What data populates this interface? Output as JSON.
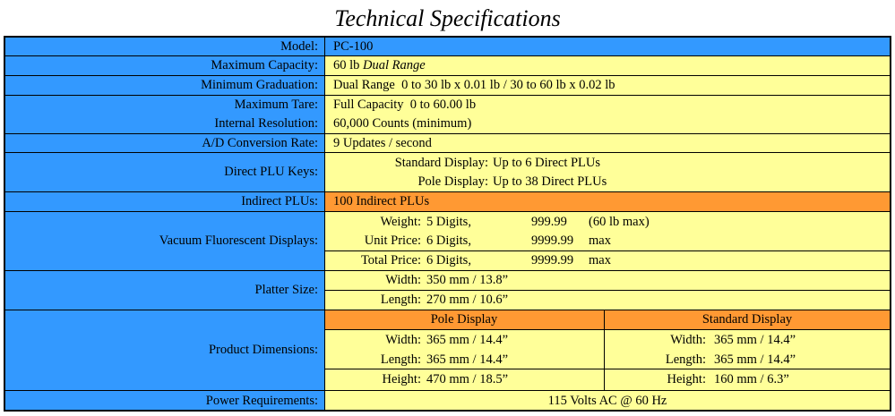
{
  "title": "Technical Specifications",
  "specs": {
    "model": {
      "label": "Model:",
      "value": "PC-100"
    },
    "capacity": {
      "label": "Maximum Capacity:",
      "value": "60 lb",
      "note": "Dual Range"
    },
    "graduation": {
      "label": "Minimum Graduation:",
      "value": "Dual Range  0 to 30 lb x 0.01 lb / 30 to 60 lb x 0.02 lb"
    },
    "tare": {
      "label": "Maximum Tare:",
      "value": "Full Capacity  0 to 60.00 lb"
    },
    "resolution": {
      "label": "Internal Resolution:",
      "value": "60,000 Counts (minimum)"
    },
    "ad_rate": {
      "label": "A/D Conversion Rate:",
      "value": "9 Updates / second"
    },
    "plu_keys": {
      "label": "Direct PLU Keys:",
      "lines": [
        {
          "label": "Standard Display:",
          "value": "Up to 6 Direct PLUs"
        },
        {
          "label": "Pole Display:",
          "value": "Up to 38 Direct PLUs"
        }
      ]
    },
    "indirect_plus": {
      "label": "Indirect PLUs:",
      "value": "100 Indirect PLUs"
    },
    "vfd": {
      "label": "Vacuum Fluorescent Displays:",
      "lines": [
        {
          "label": "Weight:",
          "digits": "5 Digits,",
          "value": "999.99",
          "unit": "(60 lb max)"
        },
        {
          "label": "Unit Price:",
          "digits": "6 Digits,",
          "value": "9999.99",
          "unit": "max"
        },
        {
          "label": "Total Price:",
          "digits": "6 Digits,",
          "value": "9999.99",
          "unit": "max"
        }
      ]
    },
    "platter": {
      "label": "Platter Size:",
      "lines": [
        {
          "label": "Width:",
          "value": "350 mm / 13.8”"
        },
        {
          "label": "Length:",
          "value": "270 mm / 10.6”"
        }
      ]
    },
    "dimensions": {
      "label": "Product Dimensions:",
      "columns": [
        {
          "title": "Pole Display",
          "lines": [
            {
              "label": "Width:",
              "value": "365 mm / 14.4”"
            },
            {
              "label": "Length:",
              "value": "365 mm / 14.4”"
            },
            {
              "label": "Height:",
              "value": "470 mm / 18.5”"
            }
          ]
        },
        {
          "title": "Standard Display",
          "lines": [
            {
              "label": "Width:",
              "value": "365 mm / 14.4”"
            },
            {
              "label": "Length:",
              "value": "365 mm / 14.4”"
            },
            {
              "label": "Height:",
              "value": "160 mm / 6.3”"
            }
          ]
        }
      ]
    },
    "power": {
      "label": "Power Requirements:",
      "value": "115 Volts AC @ 60 Hz"
    }
  }
}
